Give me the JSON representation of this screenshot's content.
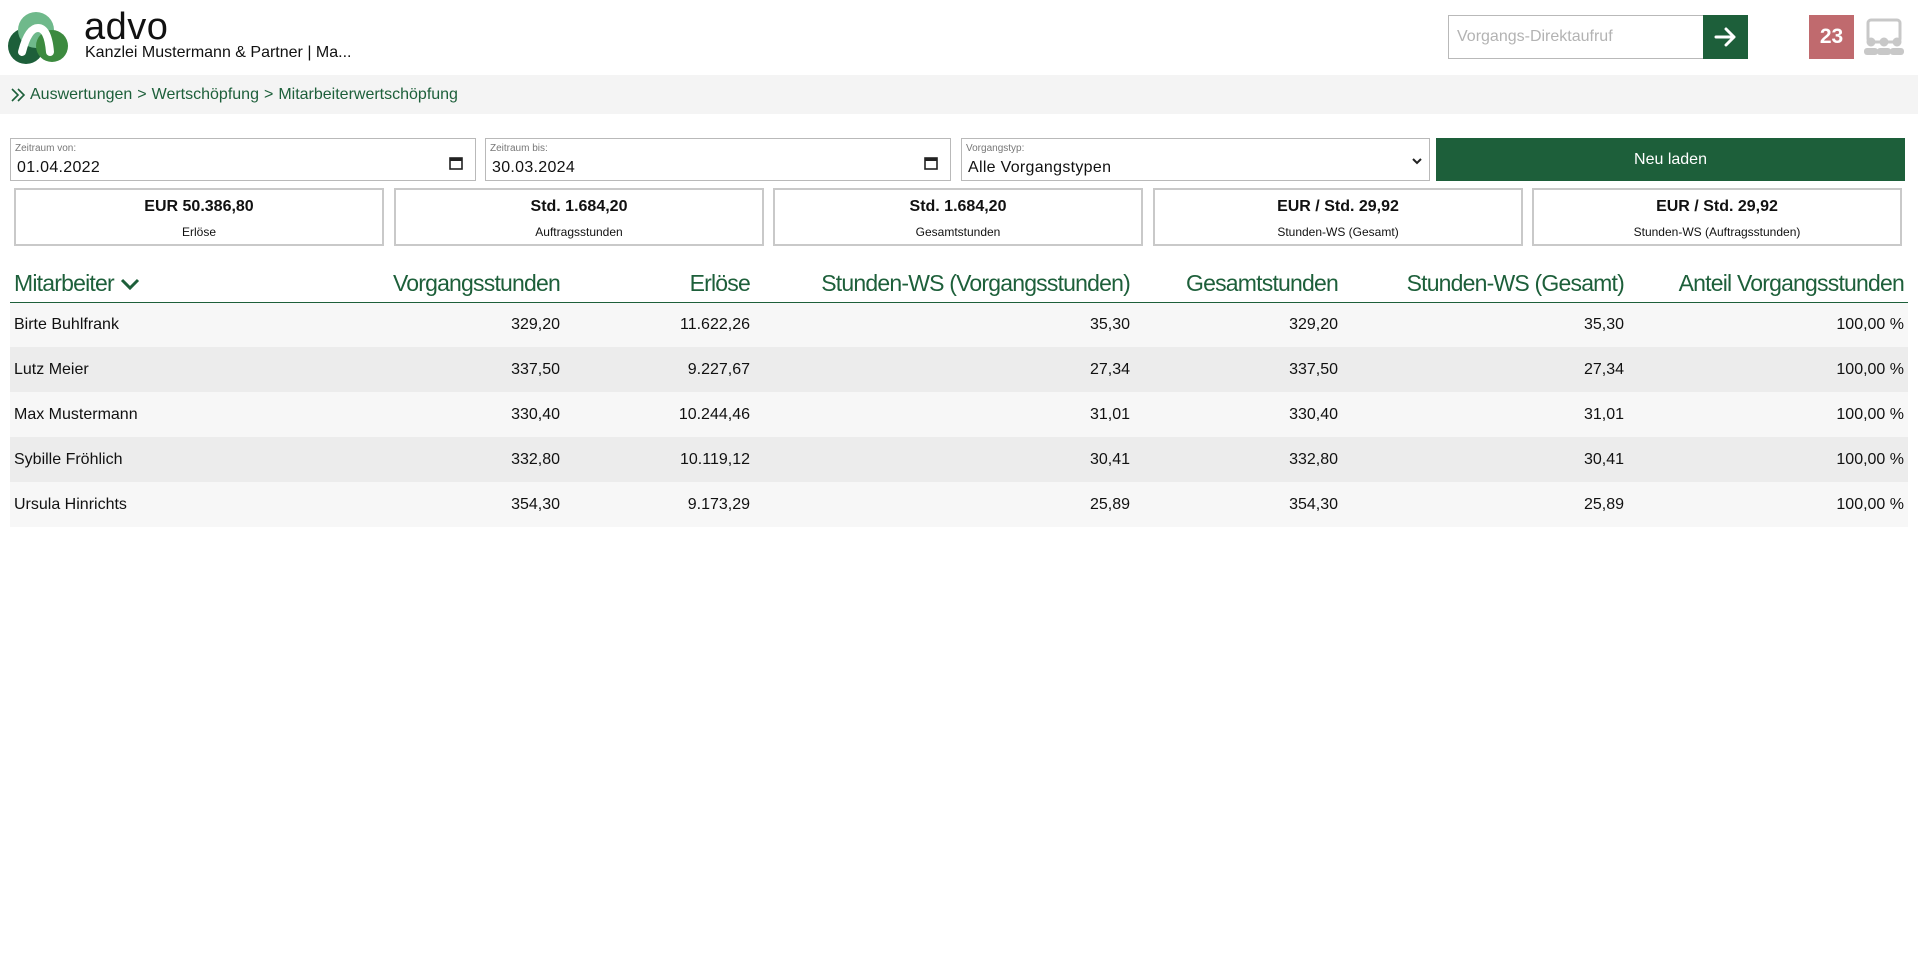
{
  "header": {
    "brand": "advo",
    "organization": "Kanzlei Mustermann & Partner | Ma...",
    "direct_call_placeholder": "Vorgangs-Direktaufruf",
    "notification_count": "23",
    "colors": {
      "accent": "#1d5f3a",
      "badge": "#c06a6e"
    }
  },
  "breadcrumb": {
    "items": [
      "Auswertungen",
      "Wertschöpfung",
      "Mitarbeiterwertschöpfung"
    ],
    "separator": ">"
  },
  "filters": {
    "from_label": "Zeitraum von:",
    "from_value": "01.04.2022",
    "to_label": "Zeitraum bis:",
    "to_value": "30.03.2024",
    "type_label": "Vorgangstyp:",
    "type_value": "Alle Vorgangstypen",
    "reload_label": "Neu laden"
  },
  "kpis": [
    {
      "value": "EUR 50.386,80",
      "label": "Erlöse"
    },
    {
      "value": "Std. 1.684,20",
      "label": "Auftragsstunden"
    },
    {
      "value": "Std. 1.684,20",
      "label": "Gesamtstunden"
    },
    {
      "value": "EUR / Std. 29,92",
      "label": "Stunden-WS (Gesamt)"
    },
    {
      "value": "EUR / Std. 29,92",
      "label": "Stunden-WS (Auftragsstunden)"
    }
  ],
  "table": {
    "columns": [
      "Mitarbeiter",
      "Vorgangsstunden",
      "Erlöse",
      "Stunden-WS (Vorgangsstunden)",
      "Gesamtstunden",
      "Stunden-WS (Gesamt)",
      "Anteil Vorgangsstunden"
    ],
    "rows": [
      [
        "Birte Buhlfrank",
        "329,20",
        "11.622,26",
        "35,30",
        "329,20",
        "35,30",
        "100,00 %"
      ],
      [
        "Lutz Meier",
        "337,50",
        "9.227,67",
        "27,34",
        "337,50",
        "27,34",
        "100,00 %"
      ],
      [
        "Max Mustermann",
        "330,40",
        "10.244,46",
        "31,01",
        "330,40",
        "31,01",
        "100,00 %"
      ],
      [
        "Sybille Fröhlich",
        "332,80",
        "10.119,12",
        "30,41",
        "332,80",
        "30,41",
        "100,00 %"
      ],
      [
        "Ursula Hinrichts",
        "354,30",
        "9.173,29",
        "25,89",
        "354,30",
        "25,89",
        "100,00 %"
      ]
    ]
  }
}
